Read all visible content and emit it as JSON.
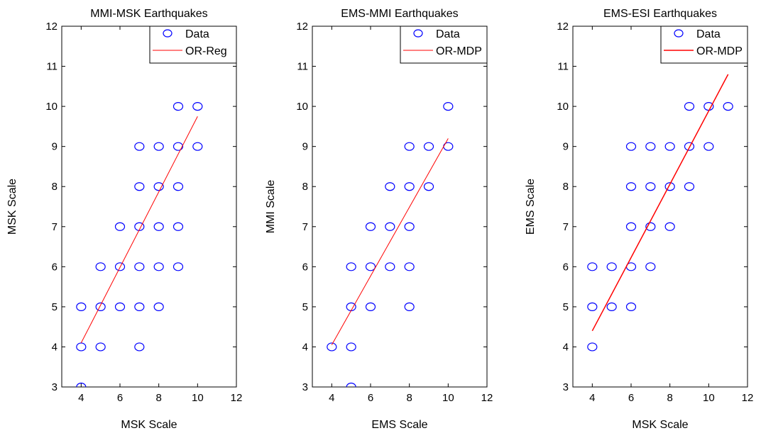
{
  "chart_data": [
    {
      "type": "scatter",
      "title": "MMI-MSK Earthquakes",
      "xlabel": "MSK Scale",
      "ylabel": "MSK Scale",
      "xlim": [
        3,
        12
      ],
      "ylim": [
        3,
        12
      ],
      "xticks": [
        4,
        6,
        8,
        10,
        12
      ],
      "yticks": [
        3,
        4,
        5,
        6,
        7,
        8,
        9,
        10,
        11,
        12
      ],
      "legend_position": "top-right",
      "series": [
        {
          "name": "Data",
          "kind": "markers",
          "color": "#0000ff",
          "points": [
            [
              4,
              3
            ],
            [
              4,
              4
            ],
            [
              4,
              5
            ],
            [
              5,
              4
            ],
            [
              5,
              5
            ],
            [
              5,
              6
            ],
            [
              6,
              5
            ],
            [
              6,
              6
            ],
            [
              6,
              7
            ],
            [
              7,
              4
            ],
            [
              7,
              5
            ],
            [
              7,
              6
            ],
            [
              7,
              7
            ],
            [
              7,
              8
            ],
            [
              7,
              9
            ],
            [
              8,
              5
            ],
            [
              8,
              6
            ],
            [
              8,
              7
            ],
            [
              8,
              8
            ],
            [
              8,
              9
            ],
            [
              9,
              6
            ],
            [
              9,
              7
            ],
            [
              9,
              8
            ],
            [
              9,
              9
            ],
            [
              9,
              10
            ],
            [
              10,
              9
            ],
            [
              10,
              10
            ]
          ]
        },
        {
          "name": "OR-Reg",
          "kind": "line",
          "color": "#ff0000",
          "points": [
            [
              4,
              4.1
            ],
            [
              10,
              9.75
            ]
          ]
        }
      ]
    },
    {
      "type": "scatter",
      "title": "EMS-MMI Earthquakes",
      "xlabel": "EMS Scale",
      "ylabel": "MMI Scale",
      "xlim": [
        3,
        12
      ],
      "ylim": [
        3,
        12
      ],
      "xticks": [
        4,
        6,
        8,
        10,
        12
      ],
      "yticks": [
        3,
        4,
        5,
        6,
        7,
        8,
        9,
        10,
        11,
        12
      ],
      "legend_position": "top-right",
      "series": [
        {
          "name": "Data",
          "kind": "markers",
          "color": "#0000ff",
          "points": [
            [
              4,
              4
            ],
            [
              5,
              3
            ],
            [
              5,
              4
            ],
            [
              5,
              5
            ],
            [
              5,
              6
            ],
            [
              6,
              5
            ],
            [
              6,
              6
            ],
            [
              6,
              7
            ],
            [
              7,
              6
            ],
            [
              7,
              7
            ],
            [
              7,
              8
            ],
            [
              8,
              5
            ],
            [
              8,
              6
            ],
            [
              8,
              7
            ],
            [
              8,
              8
            ],
            [
              8,
              9
            ],
            [
              9,
              8
            ],
            [
              9,
              9
            ],
            [
              10,
              9
            ],
            [
              10,
              10
            ]
          ]
        },
        {
          "name": "OR-MDP",
          "kind": "line",
          "color": "#ff0000",
          "points": [
            [
              4,
              4.05
            ],
            [
              10,
              9.2
            ]
          ]
        }
      ]
    },
    {
      "type": "scatter",
      "title": "EMS-ESI Earthquakes",
      "xlabel": "MSK Scale",
      "ylabel": "EMS Scale",
      "xlim": [
        3,
        12
      ],
      "ylim": [
        3,
        12
      ],
      "xticks": [
        4,
        6,
        8,
        10,
        12
      ],
      "yticks": [
        3,
        4,
        5,
        6,
        7,
        8,
        9,
        10,
        11,
        12
      ],
      "legend_position": "top-right",
      "series": [
        {
          "name": "Data",
          "kind": "markers",
          "color": "#0000ff",
          "points": [
            [
              4,
              4
            ],
            [
              4,
              5
            ],
            [
              4,
              6
            ],
            [
              5,
              5
            ],
            [
              5,
              6
            ],
            [
              6,
              5
            ],
            [
              6,
              6
            ],
            [
              6,
              7
            ],
            [
              6,
              8
            ],
            [
              6,
              9
            ],
            [
              7,
              6
            ],
            [
              7,
              7
            ],
            [
              7,
              8
            ],
            [
              7,
              9
            ],
            [
              8,
              7
            ],
            [
              8,
              8
            ],
            [
              8,
              9
            ],
            [
              9,
              8
            ],
            [
              9,
              9
            ],
            [
              9,
              10
            ],
            [
              10,
              9
            ],
            [
              10,
              10
            ],
            [
              11,
              10
            ]
          ]
        },
        {
          "name": "OR-MDP",
          "kind": "line",
          "color": "#ff0000",
          "points": [
            [
              4,
              4.4
            ],
            [
              11,
              10.8
            ]
          ]
        }
      ]
    }
  ]
}
